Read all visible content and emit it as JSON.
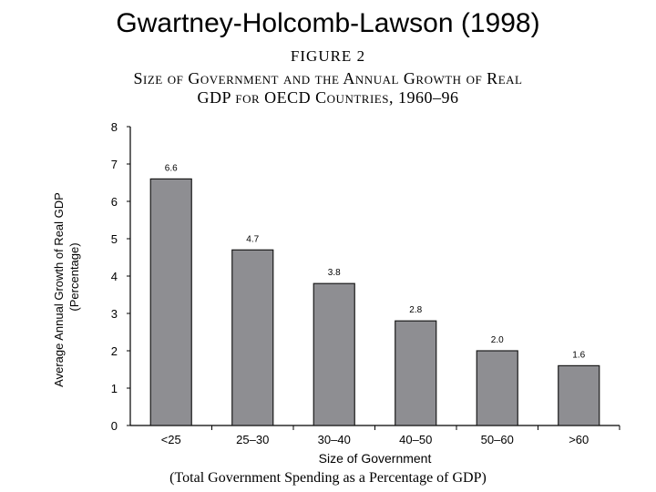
{
  "slide": {
    "title": "Gwartney-Holcomb-Lawson (1998)"
  },
  "figure": {
    "label": "FIGURE 2",
    "title_line1": "Size of Government and the Annual Growth of Real",
    "title_line2": "GDP for OECD Countries, 1960–96",
    "footnote": "(Total Government Spending as a Percentage of GDP)"
  },
  "chart_data": {
    "type": "bar",
    "title": "Size of Government and the Annual Growth of Real GDP for OECD Countries, 1960–96",
    "categories": [
      "<25",
      "25–30",
      "30–40",
      "40–50",
      "50–60",
      ">60"
    ],
    "values": [
      6.6,
      4.7,
      3.8,
      2.8,
      2.0,
      1.6
    ],
    "data_labels": [
      "6.6",
      "4.7",
      "3.8",
      "2.8",
      "2.0",
      "1.6"
    ],
    "xlabel": "Size of Government",
    "ylabel_line1": "Average Annual Growth of Real GDP",
    "ylabel_line2": "(Percentage)",
    "ylim": [
      0,
      8
    ],
    "yticks": [
      "0",
      "1",
      "2",
      "3",
      "4",
      "5",
      "6",
      "7",
      "8"
    ],
    "bar_color": "#8e8e92",
    "grid": false
  }
}
